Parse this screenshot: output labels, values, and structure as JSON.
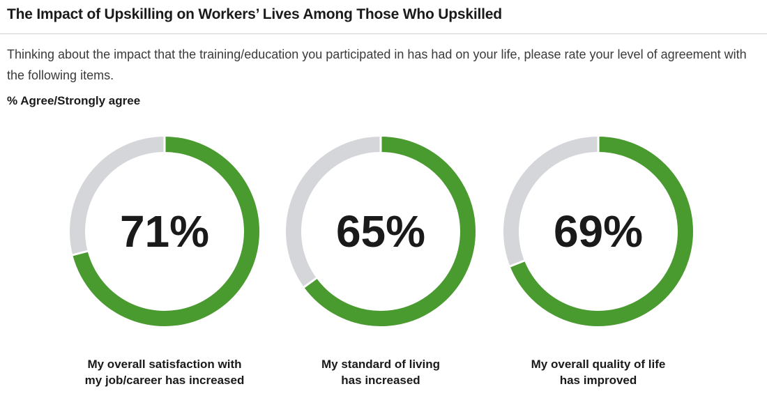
{
  "header": {
    "title": "The Impact of Upskilling on Workers’ Lives Among Those Who Upskilled",
    "subtitle": "Thinking about the impact that the training/education you participated in has had on your life, please rate your level of agreement with the following items.",
    "measure": "% Agree/Strongly agree"
  },
  "colors": {
    "filled": "#4a9b2f",
    "track": "#d4d6d9",
    "text": "#1a1a1a"
  },
  "chart_data": {
    "type": "pie",
    "title": "The Impact of Upskilling on Workers’ Lives Among Those Who Upskilled",
    "subtitle": "% Agree/Strongly agree",
    "unit": "%",
    "items": [
      {
        "value": 71,
        "display": "71%",
        "label_lines": [
          "My overall satisfaction with",
          "my job/career has increased"
        ]
      },
      {
        "value": 65,
        "display": "65%",
        "label_lines": [
          "My standard of living",
          "has increased"
        ]
      },
      {
        "value": 69,
        "display": "69%",
        "label_lines": [
          "My overall quality of life",
          "has improved"
        ]
      }
    ]
  }
}
